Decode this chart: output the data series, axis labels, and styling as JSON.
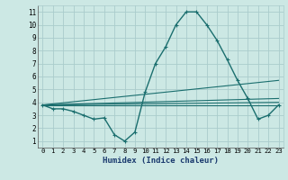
{
  "title": "",
  "xlabel": "Humidex (Indice chaleur)",
  "xlim": [
    -0.5,
    23.5
  ],
  "ylim": [
    0.5,
    11.5
  ],
  "xticks": [
    0,
    1,
    2,
    3,
    4,
    5,
    6,
    7,
    8,
    9,
    10,
    11,
    12,
    13,
    14,
    15,
    16,
    17,
    18,
    19,
    20,
    21,
    22,
    23
  ],
  "yticks": [
    1,
    2,
    3,
    4,
    5,
    6,
    7,
    8,
    9,
    10,
    11
  ],
  "bg_color": "#cce8e4",
  "grid_color": "#aacccc",
  "line_color": "#1a6e6e",
  "line_series": [
    {
      "x": [
        0,
        1,
        2,
        3,
        4,
        5,
        6,
        7,
        8,
        9,
        10,
        11,
        12,
        13,
        14,
        15,
        16,
        17,
        18,
        19,
        20,
        21,
        22,
        23
      ],
      "y": [
        3.8,
        3.5,
        3.5,
        3.3,
        3.0,
        2.7,
        2.8,
        1.5,
        1.0,
        1.7,
        4.8,
        7.0,
        8.3,
        10.0,
        11.0,
        11.0,
        10.0,
        8.8,
        7.3,
        5.7,
        4.3,
        2.7,
        3.0,
        3.8
      ],
      "marker": true,
      "lw": 1.0
    },
    {
      "x": [
        0,
        23
      ],
      "y": [
        3.8,
        3.8
      ],
      "marker": false,
      "lw": 0.8
    },
    {
      "x": [
        0,
        23
      ],
      "y": [
        3.8,
        4.0
      ],
      "marker": false,
      "lw": 0.8
    },
    {
      "x": [
        0,
        23
      ],
      "y": [
        3.8,
        4.3
      ],
      "marker": false,
      "lw": 0.8
    },
    {
      "x": [
        0,
        23
      ],
      "y": [
        3.8,
        5.7
      ],
      "marker": false,
      "lw": 0.8
    }
  ]
}
